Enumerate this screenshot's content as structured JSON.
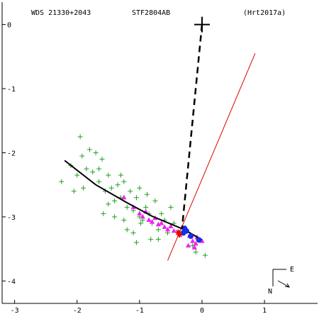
{
  "header": {
    "wds_id": "WDS 21330+2043",
    "discoverer": "STF2804AB",
    "reference": "(Hrt2017a)"
  },
  "compass": {
    "east_label": "E",
    "north_label": "N"
  },
  "chart_data": {
    "type": "scatter",
    "xlim": [
      -3.2,
      1.85
    ],
    "ylim": [
      0.35,
      -4.35
    ],
    "x_ticks": [
      -3,
      -2,
      -1,
      0,
      1
    ],
    "y_ticks": [
      0,
      -1,
      -2,
      -3,
      -4
    ],
    "primary_position": [
      0.0,
      0.0
    ],
    "orbit_track": [
      [
        -2.2,
        -2.12
      ],
      [
        -1.7,
        -2.5
      ],
      [
        -1.2,
        -2.78
      ],
      [
        -0.8,
        -2.99
      ],
      [
        -0.28,
        -3.2
      ],
      [
        0.0,
        -3.36
      ]
    ],
    "node_line": [
      [
        -0.55,
        -3.68
      ],
      [
        0.85,
        -0.45
      ]
    ],
    "dashed_line": [
      [
        0.0,
        0.0
      ],
      [
        -0.32,
        -3.18
      ]
    ],
    "green_plus_points": [
      [
        -2.25,
        -2.45
      ],
      [
        -2.1,
        -2.2
      ],
      [
        -2.0,
        -2.35
      ],
      [
        -1.95,
        -1.75
      ],
      [
        -1.92,
        -2.05
      ],
      [
        -1.85,
        -2.25
      ],
      [
        -1.8,
        -1.95
      ],
      [
        -1.75,
        -2.3
      ],
      [
        -1.7,
        -2.0
      ],
      [
        -1.65,
        -2.45
      ],
      [
        -1.6,
        -2.1
      ],
      [
        -1.55,
        -2.6
      ],
      [
        -1.5,
        -2.35
      ],
      [
        -1.45,
        -2.55
      ],
      [
        -1.4,
        -2.75
      ],
      [
        -1.35,
        -2.5
      ],
      [
        -1.3,
        -2.7
      ],
      [
        -1.25,
        -2.45
      ],
      [
        -1.2,
        -2.85
      ],
      [
        -1.15,
        -2.6
      ],
      [
        -1.1,
        -2.9
      ],
      [
        -1.05,
        -2.7
      ],
      [
        -1.0,
        -2.55
      ],
      [
        -0.95,
        -3.05
      ],
      [
        -0.9,
        -2.85
      ],
      [
        -0.85,
        -2.95
      ],
      [
        -0.8,
        -3.1
      ],
      [
        -0.75,
        -2.75
      ],
      [
        -0.7,
        -3.2
      ],
      [
        -0.65,
        -2.95
      ],
      [
        -0.6,
        -3.05
      ],
      [
        -0.55,
        -3.25
      ],
      [
        -0.5,
        -2.85
      ],
      [
        -0.45,
        -3.1
      ],
      [
        -1.58,
        -2.95
      ],
      [
        -1.4,
        -3.0
      ],
      [
        -1.1,
        -3.25
      ],
      [
        -0.98,
        -3.1
      ],
      [
        -0.82,
        -3.35
      ],
      [
        -1.3,
        -2.35
      ],
      [
        -1.65,
        -2.25
      ],
      [
        -1.9,
        -2.55
      ],
      [
        -2.05,
        -2.6
      ],
      [
        -0.1,
        -3.55
      ],
      [
        0.05,
        -3.6
      ],
      [
        -0.15,
        -3.45
      ],
      [
        -1.05,
        -3.4
      ],
      [
        -1.25,
        -3.05
      ],
      [
        -1.5,
        -2.8
      ],
      [
        -0.7,
        -3.35
      ],
      [
        -1.2,
        -3.2
      ],
      [
        -1.0,
        -3.0
      ],
      [
        -0.88,
        -2.65
      ]
    ],
    "magenta_triangle_points": [
      [
        -1.25,
        -2.7
      ],
      [
        -1.1,
        -2.85
      ],
      [
        -1.0,
        -2.95
      ],
      [
        -0.95,
        -3.0
      ],
      [
        -0.9,
        -2.92
      ],
      [
        -0.85,
        -3.05
      ],
      [
        -0.8,
        -3.08
      ],
      [
        -0.75,
        -3.02
      ],
      [
        -0.7,
        -3.12
      ],
      [
        -0.65,
        -3.1
      ],
      [
        -0.6,
        -3.16
      ],
      [
        -0.55,
        -3.2
      ],
      [
        -0.5,
        -3.15
      ],
      [
        -0.45,
        -3.22
      ],
      [
        -0.2,
        -3.3
      ],
      [
        -0.15,
        -3.38
      ],
      [
        -0.1,
        -3.42
      ],
      [
        -0.05,
        -3.35
      ],
      [
        0.0,
        -3.38
      ],
      [
        -0.22,
        -3.45
      ],
      [
        -0.12,
        -3.48
      ],
      [
        -0.08,
        -3.32
      ]
    ],
    "blue_points": [
      [
        -0.28,
        -3.18
      ],
      [
        -0.25,
        -3.22
      ],
      [
        -0.18,
        -3.3
      ],
      [
        -0.3,
        -3.25
      ],
      [
        -0.05,
        -3.36
      ]
    ],
    "red_star_points": [
      [
        -0.38,
        -3.24
      ],
      [
        -0.36,
        -3.28
      ]
    ]
  }
}
